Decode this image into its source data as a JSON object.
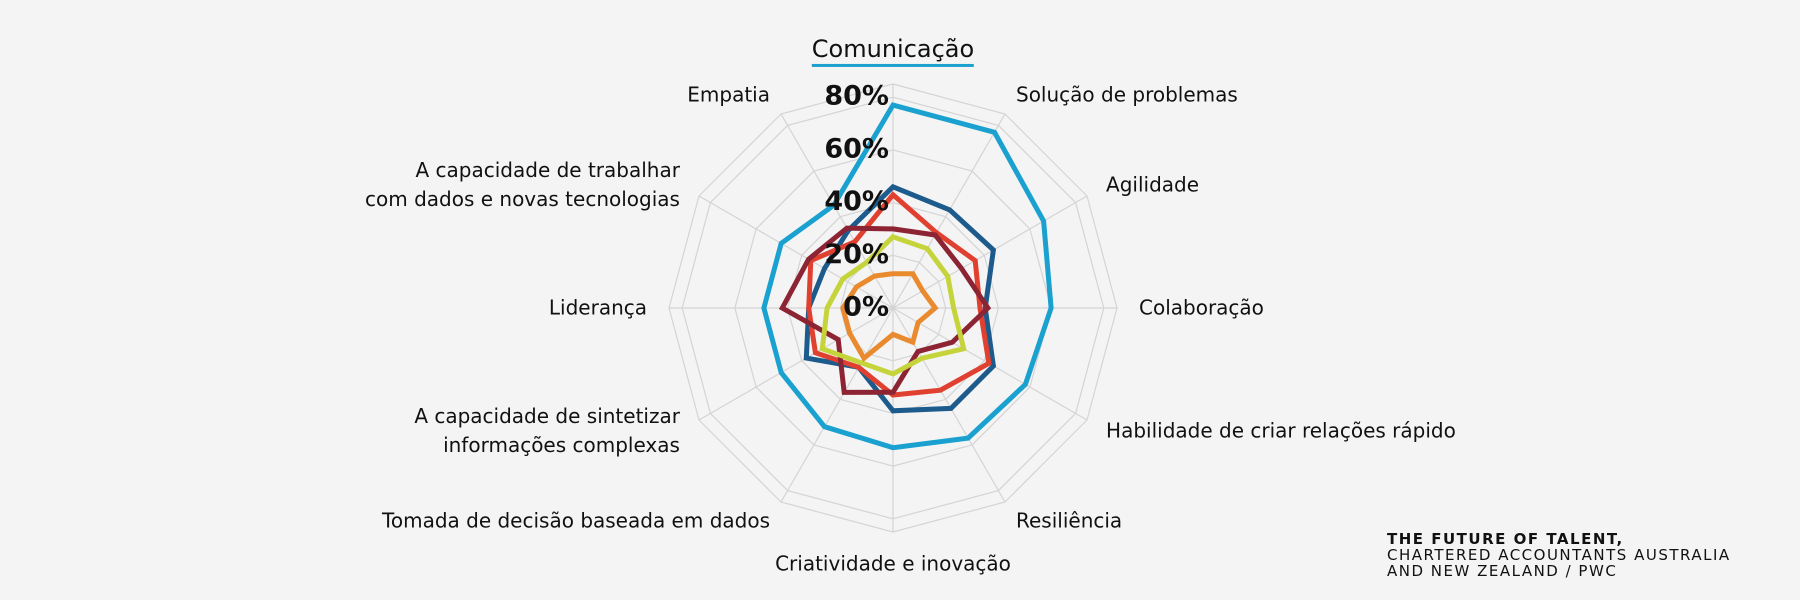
{
  "chart_data": {
    "type": "radar",
    "categories": [
      "Comunicação",
      "Solução de problemas",
      "Agilidade",
      "Colaboração",
      "Habilidade de criar relações rápido",
      "Resiliência",
      "Criatividade e inovação",
      "Tomada de decisão baseada em dados",
      "A capacidade de sintetizar\ninformações complexas",
      "Liderança",
      "A capacidade de trabalhar\ncom dados e novas tecnologias",
      "Empatia"
    ],
    "highlight_category": 0,
    "highlight_color": "#1ba1d0",
    "series": [
      {
        "color": "#1ba1d0",
        "values": [
          77,
          77,
          66,
          60,
          58,
          57,
          53,
          52,
          49,
          49,
          49,
          45
        ]
      },
      {
        "color": "#1d5b8c",
        "values": [
          46,
          43,
          44,
          35,
          44,
          44,
          39,
          26,
          38,
          32,
          30,
          34
        ]
      },
      {
        "color": "#e0402f",
        "values": [
          43,
          33,
          36,
          33,
          42,
          36,
          33,
          26,
          34,
          32,
          36,
          29
        ]
      },
      {
        "color": "#8c2433",
        "values": [
          30,
          32,
          30,
          36,
          26,
          19,
          32,
          37,
          24,
          42,
          37,
          35
        ]
      },
      {
        "color": "#c5d43a",
        "values": [
          27,
          26,
          24,
          23,
          31,
          22,
          25,
          24,
          31,
          25,
          22,
          20
        ]
      },
      {
        "color": "#e98a2e",
        "values": [
          13,
          15,
          13,
          16,
          11,
          15,
          10,
          22,
          19,
          19,
          16,
          14
        ]
      }
    ],
    "ylim": [
      0,
      85
    ],
    "yticks": [
      {
        "value": 0,
        "label": "0%"
      },
      {
        "value": 20,
        "label": "20%"
      },
      {
        "value": 40,
        "label": "40%"
      },
      {
        "value": 60,
        "label": "60%"
      },
      {
        "value": 80,
        "label": "80%"
      }
    ],
    "grid": true,
    "source": [
      "THE FUTURE OF TALENT,",
      "CHARTERED ACCOUNTANTS AUSTRALIA",
      "AND NEW ZEALAND / PWC"
    ]
  }
}
